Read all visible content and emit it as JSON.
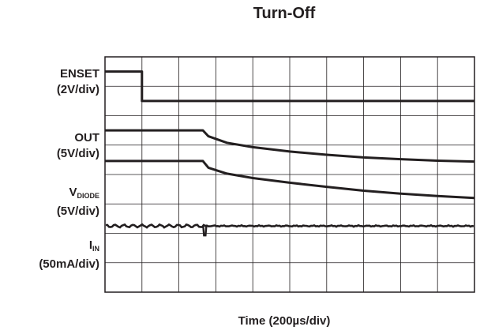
{
  "chart_data": {
    "type": "line",
    "title": "Turn-Off",
    "xlabel": "Time (200µs/div)",
    "grid": true,
    "x_divisions": 10,
    "y_divisions": 8,
    "colors": {
      "trace": "#231f20",
      "grid": "#231f20"
    },
    "channels": [
      {
        "label": "ENSET",
        "scale": "(2V/div)"
      },
      {
        "label": "OUT",
        "scale": "(5V/div)"
      },
      {
        "label_main": "V",
        "label_sub": "DIODE",
        "scale": "(5V/div)"
      },
      {
        "label_main": "I",
        "label_sub": "IN",
        "scale": "(50mA/div)"
      }
    ],
    "series": [
      {
        "channel": 0,
        "x": [
          0,
          1.0,
          1.0,
          10
        ],
        "y": [
          7.5,
          7.5,
          6.5,
          6.5
        ]
      },
      {
        "channel": 1,
        "x": [
          0,
          2.65,
          2.8,
          3.3,
          4.0,
          5.0,
          6.0,
          7.0,
          8.0,
          9.0,
          10
        ],
        "y": [
          5.5,
          5.5,
          5.3,
          5.08,
          4.93,
          4.78,
          4.67,
          4.58,
          4.52,
          4.47,
          4.44
        ]
      },
      {
        "channel": 2,
        "x": [
          0,
          2.65,
          2.8,
          3.3,
          4.0,
          5.0,
          6.0,
          7.0,
          8.0,
          9.0,
          10
        ],
        "y": [
          4.46,
          4.46,
          4.23,
          4.03,
          3.88,
          3.72,
          3.58,
          3.45,
          3.35,
          3.27,
          3.2
        ]
      },
      {
        "channel": 3,
        "baseline": 2.25,
        "x_event": 2.7
      }
    ]
  }
}
